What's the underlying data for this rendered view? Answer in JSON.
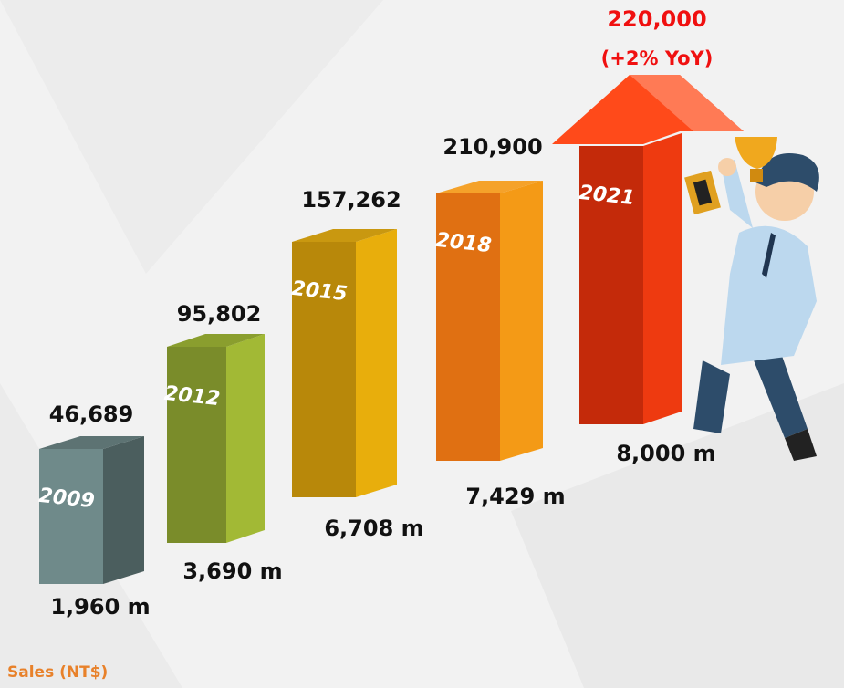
{
  "items": [
    {
      "year": "2009",
      "count": "46,689",
      "sales": "1,960 m"
    },
    {
      "year": "2012",
      "count": "95,802",
      "sales": "3,690 m"
    },
    {
      "year": "2015",
      "count": "157,262",
      "sales": "6,708 m"
    },
    {
      "year": "2018",
      "count": "210,900",
      "sales": "7,429 m"
    },
    {
      "year": "2021",
      "count": "220,000",
      "sales": "8,000 m",
      "note": "(+2% YoY)"
    }
  ],
  "footer": "Sales (NT$)"
}
